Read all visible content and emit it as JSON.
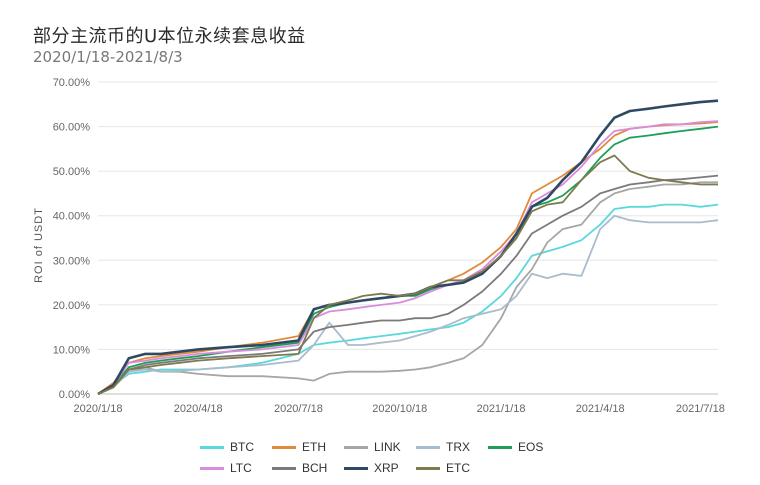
{
  "chart_data": {
    "type": "line",
    "title": "部分主流币的U本位永续套息收益",
    "subtitle": "2020/1/18-2021/8/3",
    "ylabel": "ROI of USDT",
    "xlabel": "",
    "x_ticks": [
      "2020/1/18",
      "2020/4/18",
      "2020/7/18",
      "2020/10/18",
      "2021/1/18",
      "2021/4/18",
      "2021/7/18"
    ],
    "x_range": [
      "2020-01-18",
      "2021-08-03"
    ],
    "y_ticks": [
      "0.00%",
      "10.00%",
      "20.00%",
      "30.00%",
      "40.00%",
      "50.00%",
      "60.00%",
      "70.00%"
    ],
    "ylim": [
      0,
      70
    ],
    "grid": "horizontal",
    "legend_position": "bottom",
    "x": [
      "2020-01-18",
      "2020-02-01",
      "2020-02-15",
      "2020-03-01",
      "2020-03-15",
      "2020-04-01",
      "2020-04-18",
      "2020-05-15",
      "2020-06-15",
      "2020-07-18",
      "2020-08-01",
      "2020-08-15",
      "2020-09-01",
      "2020-09-15",
      "2020-10-01",
      "2020-10-18",
      "2020-11-01",
      "2020-11-15",
      "2020-12-01",
      "2020-12-15",
      "2021-01-01",
      "2021-01-18",
      "2021-02-01",
      "2021-02-15",
      "2021-03-01",
      "2021-03-15",
      "2021-04-01",
      "2021-04-18",
      "2021-05-01",
      "2021-05-15",
      "2021-06-01",
      "2021-06-15",
      "2021-07-01",
      "2021-07-18",
      "2021-08-03"
    ],
    "series": [
      {
        "name": "BTC",
        "color": "#5ad8dc",
        "values": [
          0.0,
          2.0,
          4.5,
          5.0,
          5.5,
          5.5,
          5.5,
          6.0,
          7.0,
          9.0,
          11.0,
          11.5,
          12.0,
          12.5,
          13.0,
          13.5,
          14.0,
          14.5,
          15.0,
          16.0,
          18.5,
          22.0,
          26.0,
          31.0,
          32.0,
          33.0,
          34.5,
          38.0,
          41.5,
          42.0,
          42.0,
          42.5,
          42.5,
          42.0,
          42.5
        ]
      },
      {
        "name": "ETH",
        "color": "#e08a3c",
        "values": [
          0.0,
          2.5,
          7.0,
          8.0,
          8.5,
          9.0,
          9.5,
          10.5,
          11.5,
          13.0,
          19.0,
          20.0,
          20.5,
          21.0,
          21.5,
          22.0,
          22.5,
          24.0,
          25.5,
          27.0,
          29.5,
          33.0,
          37.0,
          45.0,
          47.0,
          49.0,
          52.0,
          55.0,
          58.0,
          59.5,
          60.0,
          60.3,
          60.5,
          60.7,
          61.0
        ]
      },
      {
        "name": "LINK",
        "color": "#a6a6a6",
        "values": [
          0.0,
          1.5,
          5.0,
          6.0,
          5.0,
          5.0,
          4.5,
          4.0,
          4.0,
          3.5,
          3.0,
          4.5,
          5.0,
          5.0,
          5.0,
          5.2,
          5.5,
          6.0,
          7.0,
          8.0,
          11.0,
          17.0,
          24.0,
          28.0,
          34.0,
          37.0,
          38.0,
          43.0,
          45.0,
          46.0,
          46.5,
          47.0,
          47.0,
          47.5,
          47.5
        ]
      },
      {
        "name": "TRX",
        "color": "#a9bccb",
        "values": [
          0.0,
          1.5,
          5.0,
          5.5,
          5.0,
          5.2,
          5.5,
          6.0,
          6.5,
          7.5,
          11.0,
          16.0,
          11.0,
          11.0,
          11.5,
          12.0,
          13.0,
          14.0,
          15.5,
          17.0,
          18.0,
          19.0,
          22.0,
          27.0,
          26.0,
          27.0,
          26.5,
          37.0,
          40.0,
          39.0,
          38.5,
          38.5,
          38.5,
          38.5,
          39.0
        ]
      },
      {
        "name": "EOS",
        "color": "#1f9e5a",
        "values": [
          0.0,
          2.0,
          6.0,
          7.0,
          7.5,
          8.0,
          8.5,
          9.5,
          10.5,
          11.5,
          18.0,
          19.5,
          20.5,
          21.0,
          21.5,
          22.0,
          22.0,
          23.5,
          24.5,
          25.0,
          27.0,
          31.0,
          35.0,
          42.0,
          43.0,
          44.5,
          48.0,
          53.0,
          56.0,
          57.5,
          58.0,
          58.5,
          59.0,
          59.5,
          60.0
        ]
      },
      {
        "name": "LTC",
        "color": "#d98bdc",
        "values": [
          0.0,
          2.0,
          7.0,
          7.5,
          8.0,
          8.5,
          9.0,
          9.5,
          10.0,
          11.0,
          17.0,
          18.5,
          19.0,
          19.5,
          20.0,
          20.5,
          21.5,
          23.0,
          24.5,
          25.5,
          28.0,
          32.0,
          36.0,
          43.0,
          45.0,
          47.0,
          51.0,
          56.0,
          59.0,
          59.5,
          60.0,
          60.5,
          60.5,
          61.0,
          61.2
        ]
      },
      {
        "name": "BCH",
        "color": "#7a7a7a",
        "values": [
          0.0,
          1.5,
          5.5,
          6.5,
          7.0,
          7.5,
          8.0,
          8.5,
          9.0,
          10.0,
          14.0,
          15.0,
          15.5,
          16.0,
          16.5,
          16.5,
          17.0,
          17.0,
          18.0,
          20.0,
          23.0,
          27.0,
          31.0,
          36.0,
          38.0,
          40.0,
          42.0,
          45.0,
          46.0,
          47.0,
          47.5,
          48.0,
          48.2,
          48.6,
          49.0
        ]
      },
      {
        "name": "XRP",
        "color": "#2e4a63",
        "values": [
          0.0,
          2.0,
          8.0,
          9.0,
          9.0,
          9.5,
          10.0,
          10.5,
          11.0,
          12.0,
          19.0,
          20.0,
          20.5,
          21.0,
          21.5,
          22.0,
          22.5,
          24.0,
          24.5,
          25.0,
          27.0,
          31.0,
          36.0,
          42.0,
          44.0,
          48.0,
          52.0,
          58.0,
          62.0,
          63.5,
          64.0,
          64.5,
          65.0,
          65.5,
          65.8
        ]
      },
      {
        "name": "ETC",
        "color": "#7f7a4e",
        "values": [
          0.0,
          1.5,
          5.5,
          6.0,
          6.5,
          7.0,
          7.5,
          8.0,
          8.5,
          9.0,
          17.0,
          20.0,
          21.0,
          22.0,
          22.5,
          22.0,
          22.5,
          24.0,
          25.5,
          25.5,
          27.5,
          31.0,
          35.0,
          41.0,
          42.5,
          43.0,
          48.0,
          52.0,
          53.5,
          50.0,
          48.5,
          48.0,
          47.5,
          47.0,
          47.0
        ]
      }
    ]
  }
}
